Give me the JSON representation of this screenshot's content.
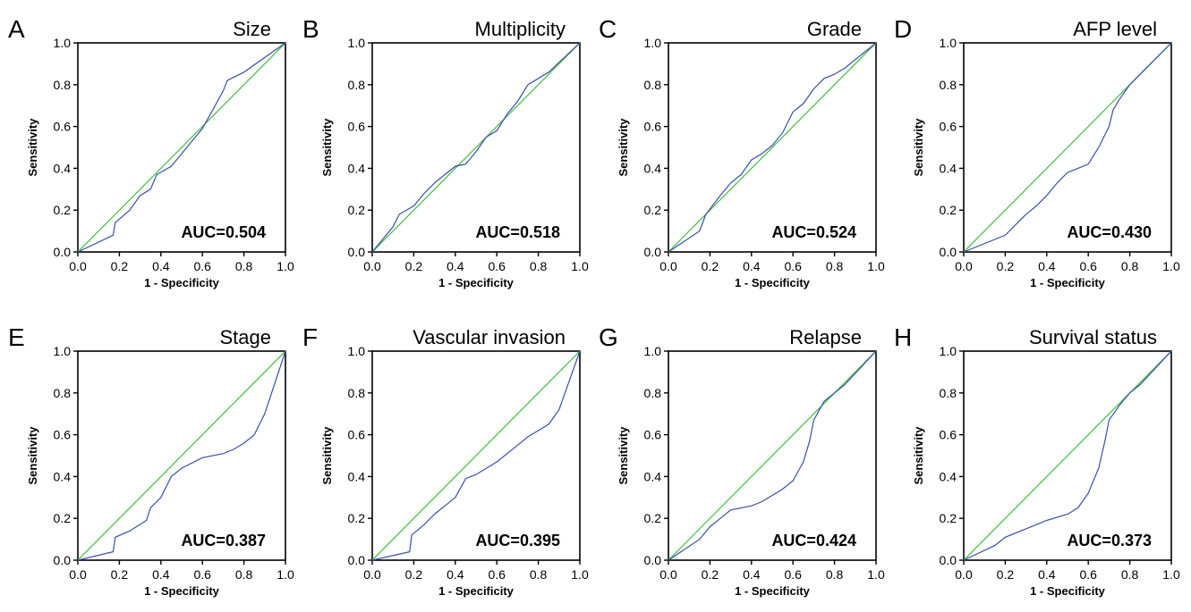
{
  "colors": {
    "roc_line": "#3a4fa6",
    "reference_line": "#4ec24e",
    "axis": "#000000"
  },
  "chart_data": [
    {
      "type": "line",
      "panel": "A",
      "title": "Size",
      "auc_label": "AUC=0.504",
      "xlabel": "1 - Specificity",
      "ylabel": "Sensitivity",
      "xlim": [
        0,
        1
      ],
      "ylim": [
        0,
        1
      ],
      "xticks": [
        "0.0",
        "0.2",
        "0.4",
        "0.6",
        "0.8",
        "1.0"
      ],
      "yticks": [
        "0.0",
        "0.2",
        "0.4",
        "0.6",
        "0.8",
        "1.0"
      ],
      "series": [
        {
          "x": [
            0,
            0.17,
            0.18,
            0.25,
            0.3,
            0.35,
            0.38,
            0.45,
            0.5,
            0.6,
            0.65,
            0.7,
            0.72,
            0.8,
            1
          ],
          "y": [
            0,
            0.08,
            0.14,
            0.2,
            0.27,
            0.3,
            0.37,
            0.41,
            0.47,
            0.59,
            0.68,
            0.77,
            0.82,
            0.86,
            1
          ]
        }
      ],
      "reference": {
        "x": [
          0,
          1
        ],
        "y": [
          0,
          1
        ]
      }
    },
    {
      "type": "line",
      "panel": "B",
      "title": "Multiplicity",
      "auc_label": "AUC=0.518",
      "xlabel": "1 - Specificity",
      "ylabel": "Sensitivity",
      "xlim": [
        0,
        1
      ],
      "ylim": [
        0,
        1
      ],
      "xticks": [
        "0.0",
        "0.2",
        "0.4",
        "0.6",
        "0.8",
        "1.0"
      ],
      "yticks": [
        "0.0",
        "0.2",
        "0.4",
        "0.6",
        "0.8",
        "1.0"
      ],
      "series": [
        {
          "x": [
            0,
            0.1,
            0.13,
            0.2,
            0.25,
            0.3,
            0.35,
            0.4,
            0.45,
            0.5,
            0.55,
            0.6,
            0.65,
            0.7,
            0.75,
            0.8,
            0.85,
            1
          ],
          "y": [
            0,
            0.12,
            0.18,
            0.22,
            0.28,
            0.33,
            0.37,
            0.41,
            0.42,
            0.48,
            0.55,
            0.58,
            0.66,
            0.72,
            0.8,
            0.83,
            0.86,
            1
          ]
        }
      ],
      "reference": {
        "x": [
          0,
          1
        ],
        "y": [
          0,
          1
        ]
      }
    },
    {
      "type": "line",
      "panel": "C",
      "title": "Grade",
      "auc_label": "AUC=0.524",
      "xlabel": "1 - Specificity",
      "ylabel": "Sensitivity",
      "xlim": [
        0,
        1
      ],
      "ylim": [
        0,
        1
      ],
      "xticks": [
        "0.0",
        "0.2",
        "0.4",
        "0.6",
        "0.8",
        "1.0"
      ],
      "yticks": [
        "0.0",
        "0.2",
        "0.4",
        "0.6",
        "0.8",
        "1.0"
      ],
      "series": [
        {
          "x": [
            0,
            0.15,
            0.18,
            0.25,
            0.3,
            0.35,
            0.4,
            0.45,
            0.5,
            0.55,
            0.6,
            0.65,
            0.7,
            0.75,
            0.8,
            0.85,
            1
          ],
          "y": [
            0,
            0.1,
            0.18,
            0.27,
            0.33,
            0.37,
            0.44,
            0.47,
            0.51,
            0.57,
            0.67,
            0.71,
            0.78,
            0.83,
            0.85,
            0.88,
            1
          ]
        }
      ],
      "reference": {
        "x": [
          0,
          1
        ],
        "y": [
          0,
          1
        ]
      }
    },
    {
      "type": "line",
      "panel": "D",
      "title": "AFP level",
      "auc_label": "AUC=0.430",
      "xlabel": "1 - Specificity",
      "ylabel": "Sensitivity",
      "xlim": [
        0,
        1
      ],
      "ylim": [
        0,
        1
      ],
      "xticks": [
        "0.0",
        "0.2",
        "0.4",
        "0.6",
        "0.8",
        "1.0"
      ],
      "yticks": [
        "0.0",
        "0.2",
        "0.4",
        "0.6",
        "0.8",
        "1.0"
      ],
      "series": [
        {
          "x": [
            0,
            0.2,
            0.25,
            0.3,
            0.35,
            0.4,
            0.45,
            0.5,
            0.55,
            0.6,
            0.65,
            0.7,
            0.72,
            0.75,
            0.8,
            0.85,
            1
          ],
          "y": [
            0,
            0.08,
            0.13,
            0.18,
            0.22,
            0.27,
            0.33,
            0.38,
            0.4,
            0.42,
            0.5,
            0.6,
            0.68,
            0.73,
            0.8,
            0.85,
            1
          ]
        }
      ],
      "reference": {
        "x": [
          0,
          1
        ],
        "y": [
          0,
          1
        ]
      }
    },
    {
      "type": "line",
      "panel": "E",
      "title": "Stage",
      "auc_label": "AUC=0.387",
      "xlabel": "1 - Specificity",
      "ylabel": "Sensitivity",
      "xlim": [
        0,
        1
      ],
      "ylim": [
        0,
        1
      ],
      "xticks": [
        "0.0",
        "0.2",
        "0.4",
        "0.6",
        "0.8",
        "1.0"
      ],
      "yticks": [
        "0.0",
        "0.2",
        "0.4",
        "0.6",
        "0.8",
        "1.0"
      ],
      "series": [
        {
          "x": [
            0,
            0.17,
            0.18,
            0.25,
            0.33,
            0.35,
            0.4,
            0.45,
            0.5,
            0.6,
            0.7,
            0.75,
            0.8,
            0.85,
            0.9,
            1
          ],
          "y": [
            0,
            0.04,
            0.11,
            0.14,
            0.19,
            0.25,
            0.3,
            0.4,
            0.44,
            0.49,
            0.51,
            0.53,
            0.56,
            0.6,
            0.7,
            1
          ]
        }
      ],
      "reference": {
        "x": [
          0,
          1
        ],
        "y": [
          0,
          1
        ]
      }
    },
    {
      "type": "line",
      "panel": "F",
      "title": "Vascular invasion",
      "auc_label": "AUC=0.395",
      "xlabel": "1 - Specificity",
      "ylabel": "Sensitivity",
      "xlim": [
        0,
        1
      ],
      "ylim": [
        0,
        1
      ],
      "xticks": [
        "0.0",
        "0.2",
        "0.4",
        "0.6",
        "0.8",
        "1.0"
      ],
      "yticks": [
        "0.0",
        "0.2",
        "0.4",
        "0.6",
        "0.8",
        "1.0"
      ],
      "series": [
        {
          "x": [
            0,
            0.18,
            0.19,
            0.25,
            0.3,
            0.35,
            0.4,
            0.45,
            0.5,
            0.6,
            0.7,
            0.75,
            0.8,
            0.85,
            0.9,
            1
          ],
          "y": [
            0,
            0.04,
            0.12,
            0.17,
            0.22,
            0.26,
            0.3,
            0.39,
            0.41,
            0.47,
            0.55,
            0.59,
            0.62,
            0.65,
            0.72,
            1
          ]
        }
      ],
      "reference": {
        "x": [
          0,
          1
        ],
        "y": [
          0,
          1
        ]
      }
    },
    {
      "type": "line",
      "panel": "G",
      "title": "Relapse",
      "auc_label": "AUC=0.424",
      "xlabel": "1 - Specificity",
      "ylabel": "Sensitivity",
      "xlim": [
        0,
        1
      ],
      "ylim": [
        0,
        1
      ],
      "xticks": [
        "0.0",
        "0.2",
        "0.4",
        "0.6",
        "0.8",
        "1.0"
      ],
      "yticks": [
        "0.0",
        "0.2",
        "0.4",
        "0.6",
        "0.8",
        "1.0"
      ],
      "series": [
        {
          "x": [
            0,
            0.15,
            0.2,
            0.25,
            0.3,
            0.4,
            0.45,
            0.5,
            0.55,
            0.6,
            0.65,
            0.68,
            0.7,
            0.75,
            0.8,
            0.85,
            1
          ],
          "y": [
            0,
            0.1,
            0.16,
            0.2,
            0.24,
            0.26,
            0.28,
            0.31,
            0.34,
            0.38,
            0.47,
            0.57,
            0.67,
            0.76,
            0.8,
            0.84,
            1
          ]
        }
      ],
      "reference": {
        "x": [
          0,
          1
        ],
        "y": [
          0,
          1
        ]
      }
    },
    {
      "type": "line",
      "panel": "H",
      "title": "Survival status",
      "auc_label": "AUC=0.373",
      "xlabel": "1 - Specificity",
      "ylabel": "Sensitivity",
      "xlim": [
        0,
        1
      ],
      "ylim": [
        0,
        1
      ],
      "xticks": [
        "0.0",
        "0.2",
        "0.4",
        "0.6",
        "0.8",
        "1.0"
      ],
      "yticks": [
        "0.0",
        "0.2",
        "0.4",
        "0.6",
        "0.8",
        "1.0"
      ],
      "series": [
        {
          "x": [
            0,
            0.15,
            0.2,
            0.3,
            0.4,
            0.5,
            0.55,
            0.6,
            0.65,
            0.68,
            0.7,
            0.75,
            0.8,
            0.85,
            1
          ],
          "y": [
            0,
            0.07,
            0.11,
            0.15,
            0.19,
            0.22,
            0.25,
            0.32,
            0.44,
            0.57,
            0.67,
            0.74,
            0.8,
            0.84,
            1
          ]
        }
      ],
      "reference": {
        "x": [
          0,
          1
        ],
        "y": [
          0,
          1
        ]
      }
    }
  ]
}
